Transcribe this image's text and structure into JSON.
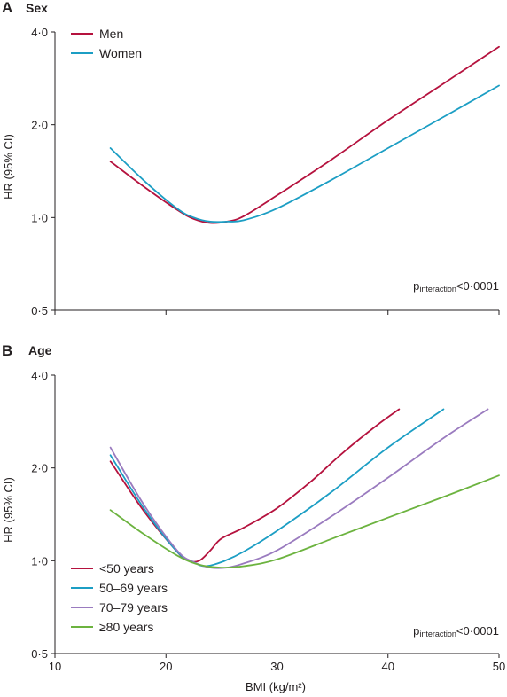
{
  "chart_data": [
    {
      "type": "line",
      "panel_letter": "A",
      "title": "Sex",
      "ylabel": "HR (95% CI)",
      "xlabel": "",
      "xlim": [
        10,
        50
      ],
      "ylim": [
        0.5,
        4.0
      ],
      "y_scale": "log",
      "x_ticks": [
        10,
        20,
        30,
        40,
        50
      ],
      "x_tick_labels": [
        "",
        "",
        "",
        "",
        ""
      ],
      "y_ticks": [
        0.5,
        1.0,
        2.0,
        4.0
      ],
      "y_tick_labels": [
        "0·5",
        "1·0",
        "2·0",
        "4·0"
      ],
      "legend_position": "top-left",
      "annotation": {
        "main": "p",
        "sub": "interaction",
        "tail": "<0·0001"
      },
      "series": [
        {
          "name": "Men",
          "color": "#b5123e",
          "x": [
            15,
            18,
            21,
            22.5,
            24,
            25.5,
            27,
            30,
            35,
            40,
            45,
            50
          ],
          "y": [
            1.52,
            1.26,
            1.06,
            0.99,
            0.96,
            0.97,
            1.01,
            1.18,
            1.55,
            2.07,
            2.72,
            3.58
          ]
        },
        {
          "name": "Women",
          "color": "#1c9ec4",
          "x": [
            15,
            18,
            21,
            22.5,
            24,
            25.5,
            27,
            30,
            35,
            40,
            45,
            50
          ],
          "y": [
            1.68,
            1.32,
            1.07,
            1.0,
            0.97,
            0.97,
            0.98,
            1.07,
            1.33,
            1.68,
            2.12,
            2.68
          ]
        }
      ]
    },
    {
      "type": "line",
      "panel_letter": "B",
      "title": "Age",
      "ylabel": "HR (95% CI)",
      "xlabel": "BMI (kg/m²)",
      "xlim": [
        10,
        50
      ],
      "ylim": [
        0.5,
        4.0
      ],
      "y_scale": "log",
      "x_ticks": [
        10,
        20,
        30,
        40,
        50
      ],
      "x_tick_labels": [
        "10",
        "20",
        "30",
        "40",
        "50"
      ],
      "y_ticks": [
        0.5,
        1.0,
        2.0,
        4.0
      ],
      "y_tick_labels": [
        "0·5",
        "1·0",
        "2·0",
        "4·0"
      ],
      "legend_position": "bottom-left",
      "annotation": {
        "main": "p",
        "sub": "interaction",
        "tail": "<0·0001"
      },
      "series": [
        {
          "name": "<50 years",
          "color": "#b5123e",
          "x": [
            15,
            18,
            21,
            22,
            23,
            24,
            25,
            27,
            30,
            33,
            36,
            39,
            41
          ],
          "y": [
            2.1,
            1.45,
            1.07,
            1.0,
            1.0,
            1.08,
            1.18,
            1.28,
            1.48,
            1.8,
            2.25,
            2.75,
            3.1
          ]
        },
        {
          "name": "50–69 years",
          "color": "#1c9ec4",
          "x": [
            15,
            18,
            21,
            22.5,
            23.5,
            25,
            27,
            30,
            35,
            40,
            45
          ],
          "y": [
            2.2,
            1.48,
            1.07,
            0.99,
            0.96,
            0.99,
            1.07,
            1.25,
            1.68,
            2.33,
            3.1
          ]
        },
        {
          "name": "70–79 years",
          "color": "#9a7bbf",
          "x": [
            15,
            18,
            21,
            22.5,
            24,
            25.5,
            27,
            30,
            35,
            40,
            45,
            49
          ],
          "y": [
            2.33,
            1.52,
            1.08,
            0.99,
            0.95,
            0.95,
            0.98,
            1.08,
            1.4,
            1.86,
            2.5,
            3.1
          ]
        },
        {
          "name": "≥80 years",
          "color": "#6cb33f",
          "x": [
            15,
            18,
            21,
            23,
            25,
            27,
            30,
            35,
            40,
            45,
            50
          ],
          "y": [
            1.46,
            1.22,
            1.04,
            0.97,
            0.95,
            0.96,
            1.01,
            1.18,
            1.38,
            1.61,
            1.89
          ]
        }
      ]
    }
  ]
}
